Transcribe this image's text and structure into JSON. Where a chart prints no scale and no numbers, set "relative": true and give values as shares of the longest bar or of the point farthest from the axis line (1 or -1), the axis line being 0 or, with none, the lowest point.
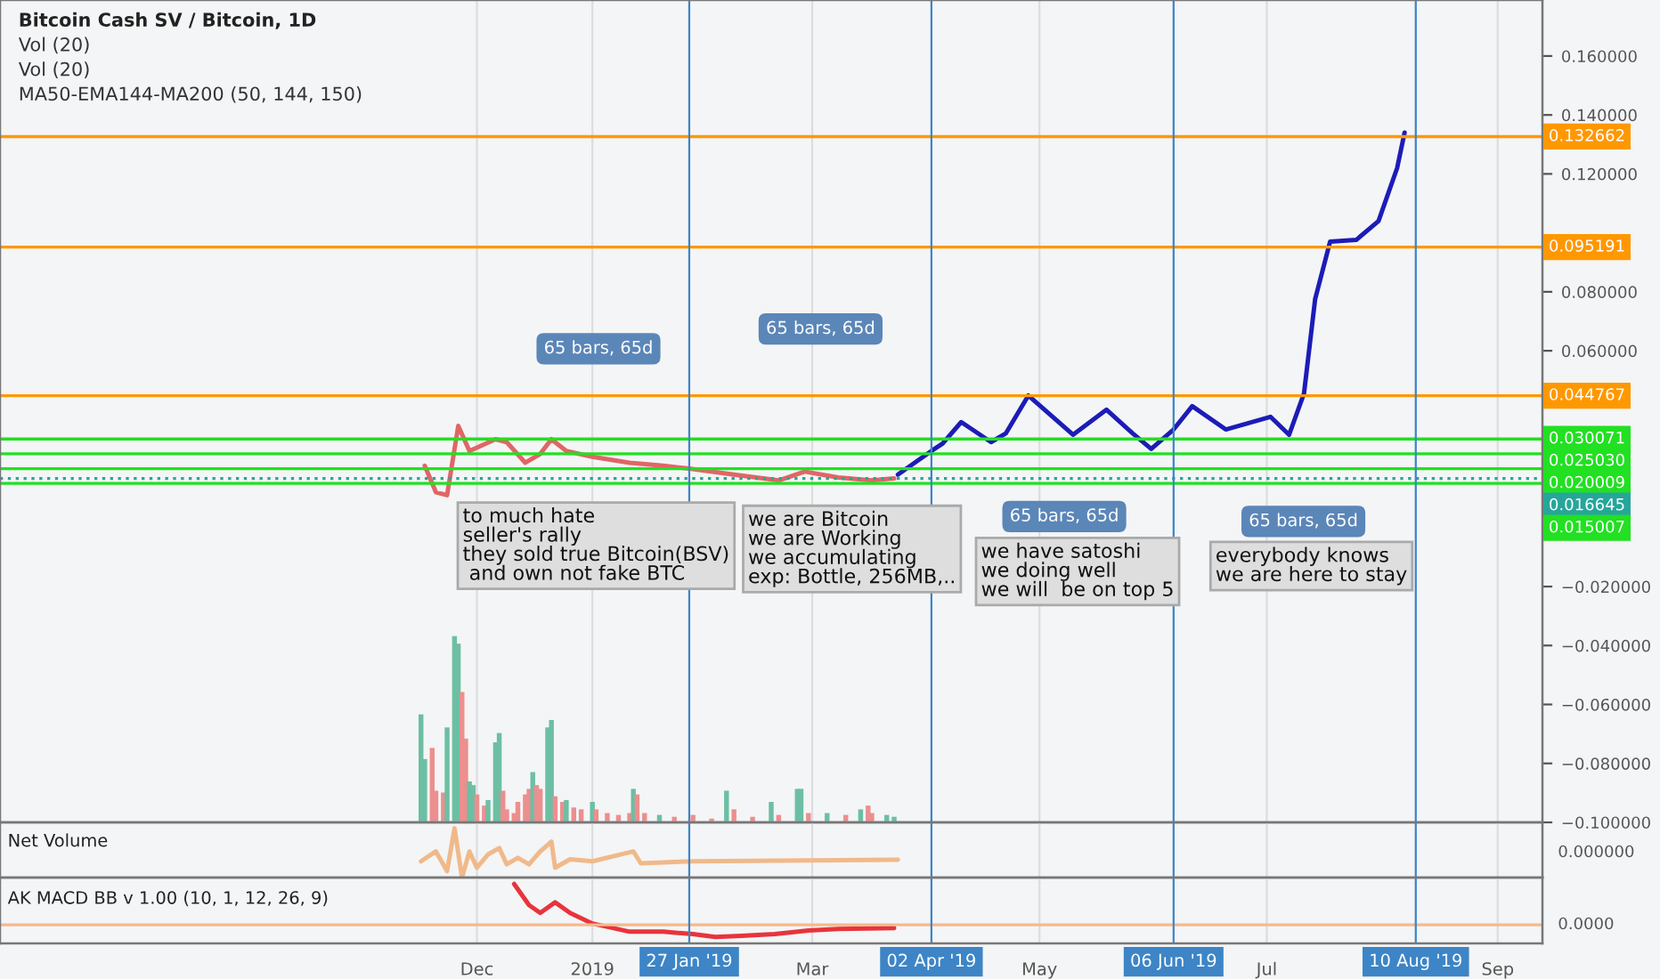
{
  "chart_data": [
    {
      "type": "line",
      "title": "Bitcoin Cash SV / Bitcoin, 1D",
      "xlim": [
        "2018-07-26",
        "2019-09-13"
      ],
      "ylim": [
        -0.1,
        0.179
      ],
      "xticks": [
        {
          "value": "2018-12-01",
          "label": null
        },
        {
          "value": "2019-01-01",
          "label": null
        },
        {
          "value": "2019-03-01",
          "label": null
        },
        {
          "value": "2019-05-01",
          "label": null
        },
        {
          "value": "2019-07-01",
          "label": null
        },
        {
          "value": "2019-09-01",
          "label": null
        }
      ],
      "yticks": [
        {
          "value": 0.16,
          "label": "0.160000"
        },
        {
          "value": 0.14,
          "label": "0.140000"
        },
        {
          "value": 0.12,
          "label": "0.120000"
        },
        {
          "value": 0.08,
          "label": "0.080000"
        },
        {
          "value": 0.06,
          "label": "0.060000"
        },
        {
          "value": -0.02,
          "label": "−0.020000"
        },
        {
          "value": -0.04,
          "label": "−0.040000"
        },
        {
          "value": -0.06,
          "label": "−0.060000"
        },
        {
          "value": -0.08,
          "label": "−0.080000"
        },
        {
          "value": -0.1,
          "label": "−0.100000"
        }
      ],
      "tick_labels": "y",
      "grid": "x",
      "legend": false,
      "series": [
        {
          "color": "#e06666",
          "x": [
            "2018-11-17",
            "2018-11-20",
            "2018-11-23",
            "2018-11-26",
            "2018-11-29",
            "2018-12-06",
            "2018-12-09",
            "2018-12-14",
            "2018-12-18",
            "2018-12-21",
            "2018-12-25",
            "2019-01-01",
            "2019-01-11",
            "2019-01-20",
            "2019-01-27",
            "2019-02-08",
            "2019-02-20",
            "2019-02-27",
            "2019-03-08",
            "2019-03-17",
            "2019-03-23"
          ],
          "values": [
            0.021,
            0.012,
            0.011,
            0.0345,
            0.026,
            0.03,
            0.029,
            0.022,
            0.025,
            0.03,
            0.026,
            0.024,
            0.022,
            0.021,
            0.02,
            0.018,
            0.016,
            0.019,
            0.017,
            0.016,
            0.0167
          ]
        },
        {
          "color": "#1c1cb8",
          "x": [
            "2019-03-24",
            "2019-04-02",
            "2019-04-05",
            "2019-04-10",
            "2019-04-18",
            "2019-04-22",
            "2019-04-28",
            "2019-05-10",
            "2019-05-19",
            "2019-05-26",
            "2019-05-31",
            "2019-06-06",
            "2019-06-11",
            "2019-06-20",
            "2019-07-02",
            "2019-07-07",
            "2019-07-11",
            "2019-07-14",
            "2019-07-18",
            "2019-07-25",
            "2019-07-31",
            "2019-08-05",
            "2019-08-07"
          ],
          "values": [
            0.018,
            0.026,
            0.0285,
            0.0358,
            0.029,
            0.032,
            0.0448,
            0.0315,
            0.04,
            0.032,
            0.0267,
            0.0333,
            0.0412,
            0.0333,
            0.0376,
            0.0315,
            0.0455,
            0.0776,
            0.097,
            0.0976,
            0.104,
            0.122,
            0.134
          ]
        }
      ],
      "ref_lines": [
        {
          "axis": "y",
          "value": 0.132662,
          "label": "0.132662",
          "color": "#ff9800",
          "line_style": "solid"
        },
        {
          "axis": "y",
          "value": 0.095191,
          "label": "0.095191",
          "color": "#ff9800",
          "line_style": "solid"
        },
        {
          "axis": "y",
          "value": 0.044767,
          "label": "0.044767",
          "color": "#ff9800",
          "line_style": "solid"
        },
        {
          "axis": "y",
          "value": 0.030071,
          "label": "0.030071",
          "color": "#22e022",
          "line_style": "solid"
        },
        {
          "axis": "y",
          "value": 0.02503,
          "label": "0.025030",
          "color": "#22e022",
          "line_style": "solid"
        },
        {
          "axis": "y",
          "value": 0.020009,
          "label": "0.020009",
          "color": "#22e022",
          "line_style": "solid"
        },
        {
          "axis": "y",
          "value": 0.016645,
          "label": "0.016645",
          "color": "#26a69a",
          "line_style": "dotted"
        },
        {
          "axis": "y",
          "value": 0.015007,
          "label": "0.015007",
          "color": "#22e022",
          "line_style": "solid"
        },
        {
          "axis": "x",
          "value": "2019-01-27",
          "color": "#3d85c6",
          "line_style": "solid"
        },
        {
          "axis": "x",
          "value": "2019-04-02",
          "color": "#3d85c6",
          "line_style": "solid"
        },
        {
          "axis": "x",
          "value": "2019-06-06",
          "color": "#3d85c6",
          "line_style": "solid"
        },
        {
          "axis": "x",
          "value": "2019-08-10",
          "color": "#3d85c6",
          "line_style": "solid"
        }
      ],
      "annotations": [
        "Vol (20)",
        "Vol (20)",
        "MA50-EMA144-MA200 (50, 144, 150)",
        "65 bars, 65d",
        "65 bars, 65d",
        "65 bars, 65d",
        "65 bars, 65d",
        "to much hate\nseller's rally\nthey sold true Bitcoin(BSV)\n and own not fake BTC",
        "we are Bitcoin\nwe are Working\nwe accumulating\nexp: Bottle, 256MB,..",
        "we have satoshi\nwe doing well\nwe will  be on top 5",
        "everybody knows\nwe are here to stay"
      ]
    },
    {
      "type": "bar",
      "relative": true,
      "tick_labels": false,
      "xlim": [
        "2018-07-26",
        "2019-09-13"
      ],
      "x": [
        "2018-11-16",
        "2018-11-17",
        "2018-11-19",
        "2018-11-20",
        "2018-11-22",
        "2018-11-23",
        "2018-11-25",
        "2018-11-26",
        "2018-11-27",
        "2018-11-28",
        "2018-11-29",
        "2018-11-30",
        "2018-12-01",
        "2018-12-03",
        "2018-12-04",
        "2018-12-06",
        "2018-12-07",
        "2018-12-08",
        "2018-12-09",
        "2018-12-11",
        "2018-12-12",
        "2018-12-14",
        "2018-12-15",
        "2018-12-16",
        "2018-12-17",
        "2018-12-18",
        "2018-12-20",
        "2018-12-21",
        "2018-12-22",
        "2018-12-24",
        "2018-12-25",
        "2018-12-27",
        "2018-12-29",
        "2019-01-01",
        "2019-01-02",
        "2019-01-05",
        "2019-01-08",
        "2019-01-11",
        "2019-01-12",
        "2019-01-13",
        "2019-01-15",
        "2019-01-19",
        "2019-01-23",
        "2019-01-28",
        "2019-02-02",
        "2019-02-06",
        "2019-02-08",
        "2019-02-13",
        "2019-02-18",
        "2019-02-20",
        "2019-02-25",
        "2019-02-26",
        "2019-02-28",
        "2019-03-05",
        "2019-03-10",
        "2019-03-14",
        "2019-03-16",
        "2019-03-17",
        "2019-03-21",
        "2019-03-23"
      ],
      "values": [
        0.58,
        0.34,
        0.4,
        0.17,
        0.16,
        0.51,
        1.0,
        0.96,
        0.7,
        0.45,
        0.22,
        0.2,
        0.15,
        0.09,
        0.12,
        0.43,
        0.48,
        0.17,
        0.07,
        0.05,
        0.11,
        0.15,
        0.18,
        0.27,
        0.2,
        0.18,
        0.51,
        0.55,
        0.14,
        0.11,
        0.12,
        0.08,
        0.07,
        0.11,
        0.07,
        0.05,
        0.04,
        0.05,
        0.18,
        0.15,
        0.05,
        0.04,
        0.03,
        0.04,
        0.02,
        0.17,
        0.07,
        0.03,
        0.11,
        0.04,
        0.18,
        0.18,
        0.05,
        0.05,
        0.04,
        0.07,
        0.09,
        0.05,
        0.04,
        0.03
      ],
      "colors": [
        "#6cbfa3",
        "#6cbfa3",
        "#eb8f8f",
        "#eb8f8f",
        "#eb8f8f",
        "#6cbfa3",
        "#6cbfa3",
        "#6cbfa3",
        "#eb8f8f",
        "#eb8f8f",
        "#6cbfa3",
        "#6cbfa3",
        "#eb8f8f",
        "#eb8f8f",
        "#6cbfa3",
        "#6cbfa3",
        "#6cbfa3",
        "#eb8f8f",
        "#eb8f8f",
        "#eb8f8f",
        "#eb8f8f",
        "#eb8f8f",
        "#eb8f8f",
        "#6cbfa3",
        "#eb8f8f",
        "#eb8f8f",
        "#6cbfa3",
        "#6cbfa3",
        "#eb8f8f",
        "#eb8f8f",
        "#6cbfa3",
        "#eb8f8f",
        "#eb8f8f",
        "#6cbfa3",
        "#eb8f8f",
        "#eb8f8f",
        "#eb8f8f",
        "#eb8f8f",
        "#6cbfa3",
        "#eb8f8f",
        "#eb8f8f",
        "#6cbfa3",
        "#eb8f8f",
        "#eb8f8f",
        "#eb8f8f",
        "#6cbfa3",
        "#eb8f8f",
        "#eb8f8f",
        "#6cbfa3",
        "#eb8f8f",
        "#6cbfa3",
        "#6cbfa3",
        "#eb8f8f",
        "#6cbfa3",
        "#eb8f8f",
        "#6cbfa3",
        "#eb8f8f",
        "#eb8f8f",
        "#6cbfa3",
        "#6cbfa3"
      ]
    },
    {
      "type": "line",
      "title": "Net Volume",
      "relative": true,
      "xlim": [
        "2018-07-26",
        "2019-09-13"
      ],
      "tick_labels": "y",
      "grid": "x",
      "xticks": [
        {
          "value": "2018-12-01",
          "label": null
        },
        {
          "value": "2019-01-01",
          "label": null
        },
        {
          "value": "2019-03-01",
          "label": null
        },
        {
          "value": "2019-05-01",
          "label": null
        },
        {
          "value": "2019-07-01",
          "label": null
        },
        {
          "value": "2019-09-01",
          "label": null
        }
      ],
      "annotations": [
        "0.000000"
      ],
      "ref_lines": [
        {
          "axis": "x",
          "value": "2019-01-27",
          "color": "#3d85c6",
          "line_style": "solid"
        },
        {
          "axis": "x",
          "value": "2019-04-02",
          "color": "#3d85c6",
          "line_style": "solid"
        },
        {
          "axis": "x",
          "value": "2019-06-06",
          "color": "#3d85c6",
          "line_style": "solid"
        },
        {
          "axis": "x",
          "value": "2019-08-10",
          "color": "#3d85c6",
          "line_style": "solid"
        }
      ],
      "series": [
        {
          "color": "#f0b98a",
          "x": [
            "2018-11-16",
            "2018-11-20",
            "2018-11-23",
            "2018-11-25",
            "2018-11-27",
            "2018-11-29",
            "2018-12-01",
            "2018-12-04",
            "2018-12-07",
            "2018-12-09",
            "2018-12-12",
            "2018-12-15",
            "2018-12-18",
            "2018-12-21",
            "2018-12-22",
            "2018-12-26",
            "2019-01-01",
            "2019-01-12",
            "2019-01-14",
            "2019-01-28",
            "2019-03-24"
          ],
          "values": [
            0.33,
            0.53,
            0.13,
            1,
            0,
            0.53,
            0.2,
            0.47,
            0.6,
            0.27,
            0.4,
            0.27,
            0.53,
            0.73,
            0.2,
            0.37,
            0.33,
            0.53,
            0.29,
            0.33,
            0.36
          ]
        }
      ]
    },
    {
      "type": "line",
      "title": "AK MACD BB v 1.00 (10, 1, 12, 26, 9)",
      "relative": true,
      "xlim": [
        "2018-07-26",
        "2019-09-13"
      ],
      "grid": "x",
      "xticks": [
        {
          "value": "2018-12-01",
          "label": "Dec"
        },
        {
          "value": "2019-01-01",
          "label": "2019"
        },
        {
          "value": "2019-03-01",
          "label": "Mar"
        },
        {
          "value": "2019-05-01",
          "label": "May"
        },
        {
          "value": "2019-07-01",
          "label": "Jul"
        },
        {
          "value": "2019-09-01",
          "label": "Sep"
        }
      ],
      "annotations": [
        "0.0000"
      ],
      "ref_lines": [
        {
          "axis": "y",
          "value": 0,
          "color": "#f5b98c",
          "line_style": "solid"
        },
        {
          "axis": "x",
          "value": "2019-01-27",
          "label": "27 Jan '19",
          "color": "#3d85c6",
          "line_style": "solid"
        },
        {
          "axis": "x",
          "value": "2019-04-02",
          "label": "02 Apr '19",
          "color": "#3d85c6",
          "line_style": "solid"
        },
        {
          "axis": "x",
          "value": "2019-06-06",
          "label": "06 Jun '19",
          "color": "#3d85c6",
          "line_style": "solid"
        },
        {
          "axis": "x",
          "value": "2019-08-10",
          "label": "10 Aug '19",
          "color": "#3d85c6",
          "line_style": "solid"
        }
      ],
      "series": [
        {
          "color": "#e8343c",
          "x": [
            "2018-12-11",
            "2018-12-15",
            "2018-12-18",
            "2018-12-22",
            "2018-12-26",
            "2019-01-01",
            "2019-01-11",
            "2019-01-20",
            "2019-01-28",
            "2019-02-03",
            "2019-02-10",
            "2019-02-19",
            "2019-02-28",
            "2019-03-08",
            "2019-03-23"
          ],
          "values": [
            1,
            0.48,
            0.29,
            0.55,
            0.29,
            0.03,
            -0.17,
            -0.17,
            -0.23,
            -0.3,
            -0.27,
            -0.23,
            -0.14,
            -0.1,
            -0.08
          ]
        }
      ]
    }
  ]
}
